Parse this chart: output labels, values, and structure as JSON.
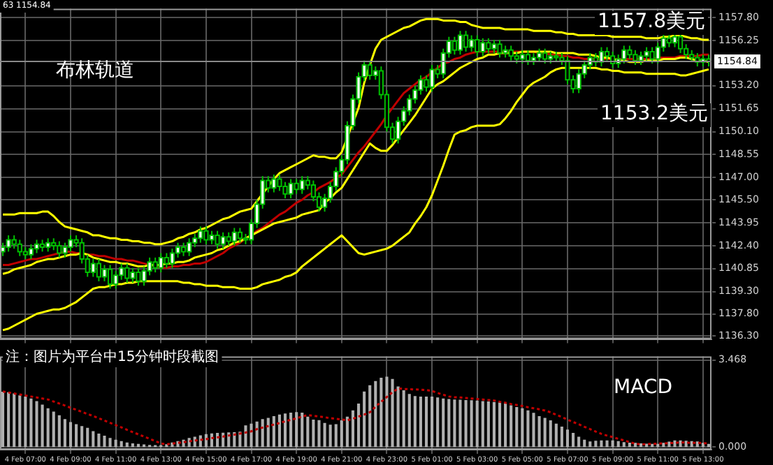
{
  "chart_data": [
    {
      "type": "candlestick",
      "tick_labels": "y",
      "grid": true,
      "annotations": [
        "63 1154.84",
        "布林轨道",
        "1157.8美元",
        "1153.2美元"
      ],
      "ylim": [
        1136.1,
        1158.4
      ],
      "categories": [
        null,
        null,
        null,
        null,
        null,
        null,
        null,
        null,
        null,
        null,
        null,
        null,
        null,
        null,
        null,
        null,
        null,
        null,
        null,
        null,
        null,
        null,
        null,
        null,
        null,
        null,
        null,
        null,
        null,
        null,
        null,
        null,
        null,
        null,
        null,
        null,
        null,
        null,
        null,
        null,
        null,
        null,
        null,
        null,
        null,
        null,
        null,
        null,
        null,
        null,
        null,
        null,
        null,
        null,
        null,
        null,
        null,
        null,
        null,
        null,
        null,
        null,
        null,
        null,
        null,
        null,
        null,
        null,
        null,
        null,
        null,
        null,
        null,
        null,
        null,
        null,
        null,
        null,
        null,
        null,
        null,
        null,
        null,
        null,
        null,
        null,
        null,
        null,
        null,
        null,
        null,
        null,
        null,
        null,
        null,
        null,
        null,
        null,
        null,
        null,
        null,
        null,
        null,
        null,
        null,
        null,
        null,
        null,
        null,
        null,
        null,
        null,
        null,
        null,
        null,
        null,
        null,
        null,
        null,
        null,
        null,
        null,
        null,
        null,
        null,
        null
      ],
      "yticks": [
        {
          "value": 1157.8,
          "label": "1157.80"
        },
        1156.25,
        {
          "value": 1153.2,
          "label": "1153.20"
        },
        1151.65,
        {
          "value": 1150.1,
          "label": "1150.10"
        },
        1148.55,
        {
          "value": 1147,
          "label": "1147.00"
        },
        {
          "value": 1145.5,
          "label": "1145.50"
        },
        1143.95,
        {
          "value": 1142.4,
          "label": "1142.40"
        },
        1140.85,
        {
          "value": 1139.3,
          "label": "1139.30"
        },
        {
          "value": 1137.8,
          "label": "1137.80"
        },
        {
          "value": 1136.3,
          "label": "1136.30"
        }
      ],
      "ref_lines": [
        {
          "axis": "y",
          "value": 1154.84,
          "label": "1154.84",
          "color": "#8a8a8a"
        }
      ],
      "ohlc": [
        [
          1142.0,
          1142.6,
          1141.7,
          1142.3
        ],
        [
          1142.3,
          1143.1,
          1142.0,
          1142.8
        ],
        [
          1142.8,
          1143.1,
          1142.2,
          1142.5
        ],
        [
          1142.5,
          1142.8,
          1141.7,
          1142.0
        ],
        [
          1142.0,
          1142.3,
          1141.5,
          1141.8
        ],
        [
          1141.8,
          1142.5,
          1141.5,
          1142.2
        ],
        [
          1142.2,
          1142.8,
          1141.9,
          1142.5
        ],
        [
          1142.5,
          1142.8,
          1142.0,
          1142.3
        ],
        [
          1142.3,
          1142.9,
          1142.0,
          1142.6
        ],
        [
          1142.6,
          1142.9,
          1142.1,
          1142.4
        ],
        [
          1142.4,
          1142.7,
          1141.6,
          1141.9
        ],
        [
          1141.9,
          1142.6,
          1141.6,
          1142.3
        ],
        [
          1142.3,
          1143.1,
          1142.0,
          1142.8
        ],
        [
          1142.8,
          1143.1,
          1142.3,
          1142.6
        ],
        [
          1142.6,
          1142.9,
          1141.2,
          1141.5
        ],
        [
          1141.5,
          1141.8,
          1140.3,
          1140.6
        ],
        [
          1140.6,
          1141.5,
          1140.3,
          1141.2
        ],
        [
          1141.2,
          1141.5,
          1140.0,
          1140.3
        ],
        [
          1140.3,
          1141.1,
          1140.0,
          1140.8
        ],
        [
          1140.8,
          1141.1,
          1139.5,
          1139.8
        ],
        [
          1139.8,
          1140.7,
          1139.5,
          1140.4
        ],
        [
          1140.4,
          1141.2,
          1140.1,
          1140.9
        ],
        [
          1140.9,
          1141.2,
          1139.9,
          1140.2
        ],
        [
          1140.2,
          1140.9,
          1139.9,
          1140.6
        ],
        [
          1140.6,
          1140.9,
          1139.7,
          1140.0
        ],
        [
          1140.0,
          1141.0,
          1139.7,
          1140.7
        ],
        [
          1140.7,
          1141.6,
          1140.4,
          1141.3
        ],
        [
          1141.3,
          1141.6,
          1140.6,
          1140.9
        ],
        [
          1140.9,
          1141.9,
          1140.6,
          1141.6
        ],
        [
          1141.6,
          1141.9,
          1140.9,
          1141.2
        ],
        [
          1141.2,
          1142.2,
          1140.9,
          1141.9
        ],
        [
          1141.9,
          1142.6,
          1141.6,
          1142.3
        ],
        [
          1142.3,
          1142.6,
          1141.7,
          1142.0
        ],
        [
          1142.0,
          1142.9,
          1141.7,
          1142.6
        ],
        [
          1142.6,
          1143.2,
          1142.3,
          1142.9
        ],
        [
          1142.9,
          1143.7,
          1142.6,
          1143.4
        ],
        [
          1143.4,
          1143.7,
          1142.5,
          1142.8
        ],
        [
          1142.8,
          1143.4,
          1142.5,
          1143.1
        ],
        [
          1143.1,
          1143.4,
          1142.2,
          1142.5
        ],
        [
          1142.5,
          1143.3,
          1142.2,
          1143.0
        ],
        [
          1143.0,
          1143.3,
          1142.4,
          1142.7
        ],
        [
          1142.7,
          1143.6,
          1142.4,
          1143.3
        ],
        [
          1143.3,
          1143.6,
          1142.6,
          1142.9
        ],
        [
          1142.9,
          1143.2,
          1142.5,
          1142.8
        ],
        [
          1142.8,
          1144.2,
          1142.5,
          1143.9
        ],
        [
          1143.9,
          1145.5,
          1143.6,
          1145.2
        ],
        [
          1145.2,
          1147.1,
          1144.9,
          1146.8
        ],
        [
          1146.8,
          1147.1,
          1146.0,
          1146.3
        ],
        [
          1146.3,
          1147.2,
          1146.0,
          1146.9
        ],
        [
          1146.9,
          1147.2,
          1146.1,
          1146.4
        ],
        [
          1146.4,
          1146.7,
          1145.6,
          1145.9
        ],
        [
          1145.9,
          1146.9,
          1145.6,
          1146.6
        ],
        [
          1146.6,
          1146.9,
          1145.9,
          1146.2
        ],
        [
          1146.2,
          1147.1,
          1145.9,
          1146.8
        ],
        [
          1146.8,
          1147.1,
          1146.2,
          1146.5
        ],
        [
          1146.5,
          1146.8,
          1145.4,
          1145.7
        ],
        [
          1145.7,
          1146.0,
          1144.7,
          1145.0
        ],
        [
          1145.0,
          1145.9,
          1144.7,
          1145.6
        ],
        [
          1145.6,
          1146.7,
          1145.3,
          1146.4
        ],
        [
          1146.4,
          1147.7,
          1146.1,
          1147.4
        ],
        [
          1147.4,
          1148.5,
          1147.1,
          1148.2
        ],
        [
          1148.2,
          1150.8,
          1147.9,
          1150.5
        ],
        [
          1150.5,
          1152.6,
          1150.2,
          1152.3
        ],
        [
          1152.3,
          1154.1,
          1152.0,
          1153.8
        ],
        [
          1153.8,
          1154.9,
          1153.5,
          1154.6
        ],
        [
          1154.6,
          1154.9,
          1153.6,
          1153.9
        ],
        [
          1153.9,
          1154.5,
          1153.6,
          1154.2
        ],
        [
          1154.2,
          1154.5,
          1152.3,
          1152.6
        ],
        [
          1152.6,
          1152.9,
          1150.1,
          1150.4
        ],
        [
          1150.4,
          1150.7,
          1149.3,
          1149.6
        ],
        [
          1149.6,
          1151.1,
          1149.3,
          1150.8
        ],
        [
          1150.8,
          1151.8,
          1150.5,
          1151.5
        ],
        [
          1151.5,
          1152.6,
          1151.2,
          1152.3
        ],
        [
          1152.3,
          1153.2,
          1152.0,
          1152.9
        ],
        [
          1152.9,
          1153.9,
          1152.6,
          1153.6
        ],
        [
          1153.6,
          1153.9,
          1152.8,
          1153.1
        ],
        [
          1153.1,
          1154.6,
          1152.8,
          1154.3
        ],
        [
          1154.3,
          1154.6,
          1153.7,
          1154.0
        ],
        [
          1154.0,
          1155.7,
          1153.7,
          1155.4
        ],
        [
          1155.4,
          1156.5,
          1155.1,
          1156.2
        ],
        [
          1156.2,
          1156.5,
          1155.3,
          1155.6
        ],
        [
          1155.6,
          1156.9,
          1155.3,
          1156.6
        ],
        [
          1156.6,
          1156.9,
          1155.5,
          1155.8
        ],
        [
          1155.8,
          1156.6,
          1155.5,
          1156.3
        ],
        [
          1156.3,
          1156.6,
          1155.2,
          1155.5
        ],
        [
          1155.5,
          1156.4,
          1155.2,
          1156.1
        ],
        [
          1156.1,
          1156.4,
          1155.4,
          1155.7
        ],
        [
          1155.7,
          1156.3,
          1155.4,
          1156.0
        ],
        [
          1156.0,
          1156.3,
          1155.1,
          1155.4
        ],
        [
          1155.4,
          1155.9,
          1155.1,
          1155.6
        ],
        [
          1155.6,
          1155.9,
          1154.9,
          1155.2
        ],
        [
          1155.2,
          1155.5,
          1154.7,
          1155.0
        ],
        [
          1155.0,
          1155.6,
          1154.7,
          1155.3
        ],
        [
          1155.3,
          1155.6,
          1154.6,
          1154.9
        ],
        [
          1154.9,
          1155.4,
          1154.6,
          1155.1
        ],
        [
          1155.1,
          1155.7,
          1154.8,
          1155.4
        ],
        [
          1155.4,
          1155.7,
          1154.7,
          1155.0
        ],
        [
          1155.0,
          1155.5,
          1154.7,
          1155.2
        ],
        [
          1155.2,
          1155.5,
          1154.8,
          1155.1
        ],
        [
          1155.1,
          1155.4,
          1154.6,
          1154.9
        ],
        [
          1154.9,
          1155.2,
          1153.3,
          1153.6
        ],
        [
          1153.6,
          1153.9,
          1152.7,
          1153.0
        ],
        [
          1153.0,
          1154.3,
          1152.7,
          1154.0
        ],
        [
          1154.0,
          1154.9,
          1153.7,
          1154.6
        ],
        [
          1154.6,
          1155.4,
          1154.3,
          1155.1
        ],
        [
          1155.1,
          1155.4,
          1154.5,
          1154.8
        ],
        [
          1154.8,
          1155.8,
          1154.5,
          1155.5
        ],
        [
          1155.5,
          1155.8,
          1154.9,
          1155.2
        ],
        [
          1155.2,
          1155.5,
          1154.4,
          1154.7
        ],
        [
          1154.7,
          1155.3,
          1154.4,
          1155.0
        ],
        [
          1155.0,
          1155.9,
          1154.7,
          1155.6
        ],
        [
          1155.6,
          1155.9,
          1155.0,
          1155.3
        ],
        [
          1155.3,
          1155.6,
          1154.6,
          1154.9
        ],
        [
          1154.9,
          1155.5,
          1154.6,
          1155.2
        ],
        [
          1155.2,
          1155.8,
          1154.9,
          1155.5
        ],
        [
          1155.5,
          1155.8,
          1154.7,
          1155.0
        ],
        [
          1155.0,
          1156.1,
          1154.7,
          1155.8
        ],
        [
          1155.8,
          1156.7,
          1155.5,
          1156.4
        ],
        [
          1156.4,
          1156.7,
          1155.8,
          1156.1
        ],
        [
          1156.1,
          1156.8,
          1155.8,
          1156.5
        ],
        [
          1156.5,
          1156.8,
          1155.4,
          1155.7
        ],
        [
          1155.7,
          1156.0,
          1155.0,
          1155.3
        ],
        [
          1155.3,
          1155.6,
          1154.8,
          1155.1
        ],
        [
          1155.1,
          1155.4,
          1154.5,
          1154.8
        ],
        [
          1154.8,
          1155.3,
          1154.5,
          1155.0
        ],
        [
          1155.0,
          1155.3,
          1154.5,
          1154.84
        ]
      ],
      "series": [
        {
          "type": "line",
          "color": "#ffff00",
          "values": [
            1144.5,
            1144.5,
            1144.5,
            1144.6,
            1144.6,
            1144.6,
            1144.6,
            1144.7,
            1144.7,
            1144.4,
            1144.0,
            1143.7,
            1143.6,
            1143.5,
            1143.4,
            1143.3,
            1143.1,
            1143.1,
            1143.0,
            1142.9,
            1142.9,
            1142.8,
            1142.8,
            1142.7,
            1142.7,
            1142.6,
            1142.6,
            1142.5,
            1142.5,
            1142.6,
            1142.7,
            1142.9,
            1143.0,
            1143.2,
            1143.3,
            1143.5,
            1143.6,
            1143.8,
            1144.0,
            1144.2,
            1144.3,
            1144.5,
            1144.7,
            1144.8,
            1144.9,
            1145.4,
            1145.9,
            1146.4,
            1146.9,
            1147.3,
            1147.5,
            1147.7,
            1147.9,
            1148.1,
            1148.3,
            1148.5,
            1148.4,
            1148.4,
            1148.3,
            1148.3,
            1148.7,
            1149.7,
            1150.7,
            1151.7,
            1153.4,
            1154.6,
            1155.7,
            1156.3,
            1156.5,
            1156.7,
            1156.9,
            1157.1,
            1157.2,
            1157.4,
            1157.6,
            1157.7,
            1157.7,
            1157.7,
            1157.6,
            1157.6,
            1157.6,
            1157.5,
            1157.5,
            1157.3,
            1157.2,
            1157.1,
            1157.1,
            1157.1,
            1157.1,
            1157.0,
            1157.0,
            1157.0,
            1157.0,
            1157.0,
            1156.9,
            1156.9,
            1156.9,
            1156.9,
            1156.8,
            1156.8,
            1156.7,
            1156.7,
            1156.6,
            1156.6,
            1156.6,
            1156.6,
            1156.6,
            1156.6,
            1156.5,
            1156.5,
            1156.5,
            1156.5,
            1156.5,
            1156.5,
            1156.4,
            1156.4,
            1156.4,
            1156.5,
            1156.5,
            1156.6,
            1156.6,
            1156.5,
            1156.4,
            1156.4,
            1156.3,
            1156.3
          ]
        },
        {
          "type": "line",
          "color": "#ffff00",
          "values": [
            1140.5,
            1140.6,
            1140.8,
            1140.9,
            1141.0,
            1141.1,
            1141.3,
            1141.4,
            1141.5,
            1141.5,
            1141.6,
            1141.7,
            1141.8,
            1141.8,
            1141.9,
            1141.8,
            1141.6,
            1141.5,
            1141.4,
            1141.3,
            1141.3,
            1141.2,
            1141.2,
            1141.1,
            1141.0,
            1141.0,
            1141.1,
            1141.1,
            1141.1,
            1141.2,
            1141.2,
            1141.3,
            1141.3,
            1141.4,
            1141.6,
            1141.7,
            1141.8,
            1141.9,
            1142.1,
            1142.2,
            1142.4,
            1142.6,
            1142.7,
            1142.9,
            1143.1,
            1143.3,
            1143.5,
            1143.7,
            1143.9,
            1144.0,
            1144.1,
            1144.2,
            1144.3,
            1144.5,
            1144.6,
            1144.7,
            1144.8,
            1145.3,
            1145.6,
            1146.0,
            1146.3,
            1146.9,
            1147.5,
            1148.1,
            1148.7,
            1149.3,
            1149.0,
            1148.8,
            1148.8,
            1149.2,
            1149.7,
            1150.2,
            1150.7,
            1151.2,
            1151.8,
            1152.4,
            1153.0,
            1153.3,
            1153.5,
            1153.8,
            1154.1,
            1154.4,
            1154.6,
            1154.8,
            1155.0,
            1155.1,
            1155.3,
            1155.3,
            1155.4,
            1155.4,
            1155.4,
            1155.4,
            1155.5,
            1155.5,
            1155.5,
            1155.5,
            1155.5,
            1155.5,
            1155.4,
            1155.4,
            1155.4,
            1155.4,
            1155.3,
            1155.3,
            1155.3,
            1155.2,
            1155.1,
            1155.1,
            1155.0,
            1154.9,
            1154.9,
            1154.8,
            1154.8,
            1154.8,
            1154.9,
            1154.9,
            1154.9,
            1155.0,
            1155.0,
            1155.0,
            1155.1,
            1155.1,
            1155.0,
            1154.9,
            1154.9,
            1154.8
          ]
        },
        {
          "type": "line",
          "color": "#c00000",
          "values": [
            1141.1,
            1141.1,
            1141.2,
            1141.3,
            1141.4,
            1141.5,
            1141.5,
            1141.6,
            1141.7,
            1141.8,
            1141.9,
            1142.0,
            1142.0,
            1141.9,
            1141.9,
            1141.8,
            1141.8,
            1141.7,
            1141.7,
            1141.6,
            1141.5,
            1141.5,
            1141.4,
            1141.4,
            1141.3,
            1141.2,
            1141.1,
            1141.0,
            1140.9,
            1140.9,
            1141.0,
            1141.0,
            1141.1,
            1141.1,
            1141.2,
            1141.2,
            1141.3,
            1141.5,
            1141.7,
            1141.9,
            1142.2,
            1142.4,
            1142.6,
            1142.9,
            1143.1,
            1143.4,
            1143.6,
            1143.9,
            1144.2,
            1144.5,
            1144.7,
            1145.0,
            1145.3,
            1145.5,
            1145.8,
            1146.0,
            1146.3,
            1146.5,
            1146.7,
            1147.0,
            1147.2,
            1147.7,
            1148.2,
            1148.7,
            1149.1,
            1149.6,
            1150.1,
            1150.6,
            1151.2,
            1151.7,
            1152.2,
            1152.7,
            1153.0,
            1153.3,
            1153.6,
            1153.8,
            1154.1,
            1154.4,
            1154.7,
            1154.8,
            1155.0,
            1155.1,
            1155.3,
            1155.4,
            1155.5,
            1155.5,
            1155.5,
            1155.5,
            1155.5,
            1155.5,
            1155.5,
            1155.5,
            1155.5,
            1155.5,
            1155.5,
            1155.4,
            1155.4,
            1155.3,
            1155.3,
            1155.2,
            1155.2,
            1155.1,
            1155.1,
            1155.0,
            1155.0,
            1155.0,
            1155.0,
            1155.0,
            1155.0,
            1155.0,
            1155.0,
            1155.0,
            1155.0,
            1155.0,
            1155.0,
            1155.0,
            1155.1,
            1155.1,
            1155.1,
            1155.1,
            1155.2,
            1155.2,
            1155.2,
            1155.2,
            1155.3,
            1155.3
          ]
        },
        {
          "type": "line",
          "color": "#ffff00",
          "values": [
            1136.7,
            1136.8,
            1137.0,
            1137.2,
            1137.4,
            1137.6,
            1137.8,
            1137.9,
            1138.0,
            1138.1,
            1138.1,
            1138.2,
            1138.4,
            1138.6,
            1138.9,
            1139.2,
            1139.5,
            1139.6,
            1139.6,
            1139.7,
            1139.8,
            1139.8,
            1139.9,
            1139.9,
            1140.0,
            1140.0,
            1140.0,
            1140.0,
            1140.0,
            1140.0,
            1140.0,
            1140.0,
            1139.9,
            1139.9,
            1139.8,
            1139.8,
            1139.7,
            1139.7,
            1139.7,
            1139.6,
            1139.6,
            1139.6,
            1139.5,
            1139.5,
            1139.5,
            1139.6,
            1139.8,
            1139.9,
            1140.0,
            1140.1,
            1140.3,
            1140.4,
            1140.6,
            1141.0,
            1141.3,
            1141.6,
            1141.9,
            1142.2,
            1142.5,
            1142.8,
            1143.1,
            1142.7,
            1142.3,
            1141.9,
            1141.8,
            1141.9,
            1142.0,
            1142.1,
            1142.2,
            1142.4,
            1142.7,
            1143.0,
            1143.3,
            1143.9,
            1144.4,
            1145.0,
            1145.8,
            1146.8,
            1147.8,
            1148.9,
            1149.9,
            1150.1,
            1150.2,
            1150.4,
            1150.5,
            1150.5,
            1150.5,
            1150.5,
            1150.6,
            1151.0,
            1151.5,
            1152.1,
            1152.6,
            1153.1,
            1153.4,
            1153.6,
            1153.8,
            1154.1,
            1154.3,
            1154.4,
            1154.4,
            1154.4,
            1154.4,
            1154.4,
            1154.4,
            1154.4,
            1154.3,
            1154.3,
            1154.2,
            1154.2,
            1154.1,
            1154.1,
            1154.1,
            1154.1,
            1154.0,
            1154.0,
            1154.0,
            1154.0,
            1154.0,
            1154.0,
            1153.9,
            1153.9,
            1154.0,
            1154.1,
            1154.2,
            1154.3
          ]
        }
      ]
    },
    {
      "type": "bar",
      "grid": true,
      "annotations": [
        "注：图片为平台中15分钟时段截图",
        "MACD"
      ],
      "ylim": [
        -0.1,
        3.62
      ],
      "categories": [
        null,
        null,
        null,
        null,
        "4 Feb 07:00",
        null,
        null,
        null,
        null,
        null,
        null,
        null,
        "4 Feb 09:00",
        null,
        null,
        null,
        null,
        null,
        null,
        null,
        "4 Feb 11:00",
        null,
        null,
        null,
        null,
        null,
        null,
        null,
        "4 Feb 13:00",
        null,
        null,
        null,
        null,
        null,
        null,
        null,
        "4 Feb 15:00",
        null,
        null,
        null,
        null,
        null,
        null,
        null,
        "4 Feb 17:00",
        null,
        null,
        null,
        null,
        null,
        null,
        null,
        "4 Feb 19:00",
        null,
        null,
        null,
        null,
        null,
        null,
        null,
        "4 Feb 21:00",
        null,
        null,
        null,
        null,
        null,
        null,
        null,
        "4 Feb 23:00",
        null,
        null,
        null,
        null,
        null,
        null,
        null,
        "5 Feb 01:00",
        null,
        null,
        null,
        null,
        null,
        null,
        null,
        "5 Feb 03:00",
        null,
        null,
        null,
        null,
        null,
        null,
        null,
        "5 Feb 05:00",
        null,
        null,
        null,
        null,
        null,
        null,
        null,
        "5 Feb 07:00",
        null,
        null,
        null,
        null,
        null,
        null,
        null,
        "5 Feb 09:00",
        null,
        null,
        null,
        null,
        null,
        null,
        null,
        "5 Feb 11:00",
        null,
        null,
        null,
        null,
        null,
        null,
        null,
        "5 Feb 13:00",
        null
      ],
      "yticks": [
        3.468,
        {
          "value": 0,
          "label": "0.000"
        }
      ],
      "series": [
        {
          "type": "bar",
          "color": "#b0b0b0",
          "values": [
            2.19,
            2.17,
            2.12,
            2.05,
            2.0,
            1.92,
            1.82,
            1.68,
            1.53,
            1.4,
            1.25,
            1.1,
            0.98,
            0.9,
            0.82,
            0.75,
            0.62,
            0.52,
            0.44,
            0.35,
            0.28,
            0.22,
            0.17,
            0.13,
            0.11,
            0.09,
            0.07,
            0.06,
            0.06,
            0.1,
            0.17,
            0.22,
            0.28,
            0.35,
            0.4,
            0.45,
            0.5,
            0.53,
            0.55,
            0.56,
            0.57,
            0.58,
            0.6,
            0.85,
            0.92,
            1.0,
            1.1,
            1.15,
            1.22,
            1.28,
            1.32,
            1.36,
            1.38,
            1.36,
            1.2,
            1.08,
            1.06,
            0.95,
            0.88,
            0.9,
            1.05,
            1.2,
            1.45,
            1.72,
            2.2,
            2.45,
            2.62,
            2.75,
            2.79,
            2.7,
            2.4,
            2.25,
            2.1,
            2.02,
            2.0,
            2.0,
            2.0,
            1.96,
            1.92,
            1.9,
            1.88,
            1.87,
            1.86,
            1.85,
            1.84,
            1.82,
            1.8,
            1.78,
            1.77,
            1.72,
            1.65,
            1.58,
            1.53,
            1.45,
            1.35,
            1.22,
            1.15,
            1.05,
            0.92,
            0.8,
            0.68,
            0.55,
            0.4,
            0.28,
            0.21,
            0.24,
            0.25,
            0.25,
            0.25,
            0.22,
            0.18,
            0.16,
            0.15,
            0.13,
            0.12,
            0.11,
            0.11,
            0.15,
            0.2,
            0.25,
            0.25,
            0.24,
            0.22,
            0.21,
            0.15,
            0.11
          ]
        },
        {
          "type": "line",
          "color": "#c00000",
          "line_style": "dotted",
          "values": [
            2.22,
            2.18,
            2.14,
            2.1,
            2.06,
            2.02,
            1.98,
            1.94,
            1.9,
            1.82,
            1.74,
            1.66,
            1.57,
            1.49,
            1.41,
            1.32,
            1.24,
            1.15,
            1.06,
            0.97,
            0.88,
            0.79,
            0.69,
            0.6,
            0.51,
            0.42,
            0.33,
            0.24,
            0.15,
            0.11,
            0.14,
            0.17,
            0.2,
            0.23,
            0.26,
            0.29,
            0.32,
            0.36,
            0.39,
            0.42,
            0.46,
            0.5,
            0.54,
            0.58,
            0.63,
            0.72,
            0.78,
            0.84,
            0.9,
            0.96,
            1.03,
            1.09,
            1.15,
            1.22,
            1.28,
            1.25,
            1.22,
            1.19,
            1.16,
            1.13,
            1.1,
            1.07,
            1.13,
            1.22,
            1.3,
            1.39,
            1.61,
            1.81,
            2.0,
            2.19,
            2.34,
            2.32,
            2.31,
            2.3,
            2.29,
            2.28,
            2.24,
            2.16,
            2.09,
            2.02,
            1.99,
            1.98,
            1.96,
            1.94,
            1.92,
            1.9,
            1.88,
            1.86,
            1.81,
            1.77,
            1.72,
            1.68,
            1.64,
            1.59,
            1.55,
            1.51,
            1.46,
            1.39,
            1.29,
            1.2,
            1.1,
            1.0,
            0.91,
            0.81,
            0.72,
            0.62,
            0.53,
            0.46,
            0.4,
            0.33,
            0.27,
            0.2,
            0.14,
            0.11,
            0.12,
            0.13,
            0.14,
            0.15,
            0.16,
            0.17,
            0.19,
            0.18,
            0.17,
            0.17,
            0.16,
            0.15
          ]
        }
      ]
    }
  ]
}
